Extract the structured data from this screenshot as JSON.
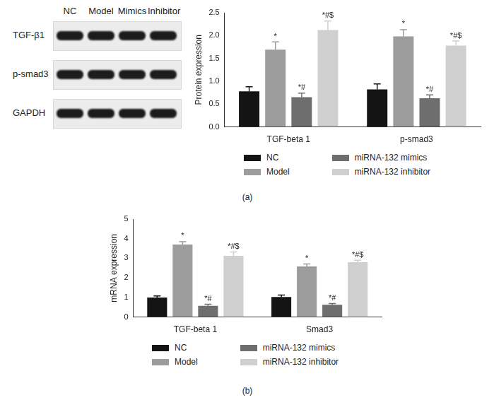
{
  "blot": {
    "lanes": [
      "NC",
      "Model",
      "Mimics",
      "Inhibitor"
    ],
    "rows": [
      "TGF-β1",
      "p-smad3",
      "GAPDH"
    ]
  },
  "chart_data": [
    {
      "type": "bar",
      "panel_label": "(a)",
      "y_label": "Protein expression",
      "categories": [
        "TGF-beta 1",
        "p-smad3"
      ],
      "ylim": [
        0,
        2.5
      ],
      "yticks": [
        {
          "value": 0,
          "label": "0.0"
        },
        0.5,
        {
          "value": 1,
          "label": "1.0"
        },
        1.5,
        {
          "value": 2,
          "label": "2.0"
        },
        2.5
      ],
      "grid": false,
      "series": [
        {
          "name": "NC",
          "color": "#141414",
          "values": [
            0.78,
            0.82
          ],
          "errors": [
            0.1,
            0.12
          ],
          "marks": [
            null,
            null
          ]
        },
        {
          "name": "Model",
          "color": "#9c9c9c",
          "values": [
            1.69,
            1.98
          ],
          "errors": [
            0.17,
            0.15
          ],
          "marks": [
            "*",
            "*"
          ]
        },
        {
          "name": "miRNA-132 mimics",
          "color": "#6e6e6e",
          "values": [
            0.65,
            0.63
          ],
          "errors": [
            0.09,
            0.07
          ],
          "marks": [
            "*#",
            "*#"
          ]
        },
        {
          "name": "miRNA-132 inhibitor",
          "color": "#cfcfcf",
          "values": [
            2.12,
            1.78
          ],
          "errors": [
            0.2,
            0.1
          ],
          "marks": [
            "*#$",
            "*#$"
          ]
        }
      ]
    },
    {
      "type": "bar",
      "panel_label": "(b)",
      "y_label": "mRNA expression",
      "categories": [
        "TGF-beta 1",
        "Smad3"
      ],
      "ylim": [
        0,
        5
      ],
      "yticks": [
        0,
        1,
        2,
        3,
        4,
        5
      ],
      "grid": false,
      "series": [
        {
          "name": "NC",
          "color": "#141414",
          "values": [
            1.0,
            1.02
          ],
          "errors": [
            0.08,
            0.1
          ],
          "marks": [
            null,
            null
          ]
        },
        {
          "name": "Model",
          "color": "#9c9c9c",
          "values": [
            3.7,
            2.58
          ],
          "errors": [
            0.15,
            0.13
          ],
          "marks": [
            "*",
            "*"
          ]
        },
        {
          "name": "miRNA-132 mimics",
          "color": "#6e6e6e",
          "values": [
            0.57,
            0.63
          ],
          "errors": [
            0.08,
            0.06
          ],
          "marks": [
            "*#",
            "*#"
          ]
        },
        {
          "name": "miRNA-132 inhibitor",
          "color": "#cfcfcf",
          "values": [
            3.12,
            2.8
          ],
          "errors": [
            0.2,
            0.1
          ],
          "marks": [
            "*#$",
            "*#$"
          ]
        }
      ]
    }
  ]
}
